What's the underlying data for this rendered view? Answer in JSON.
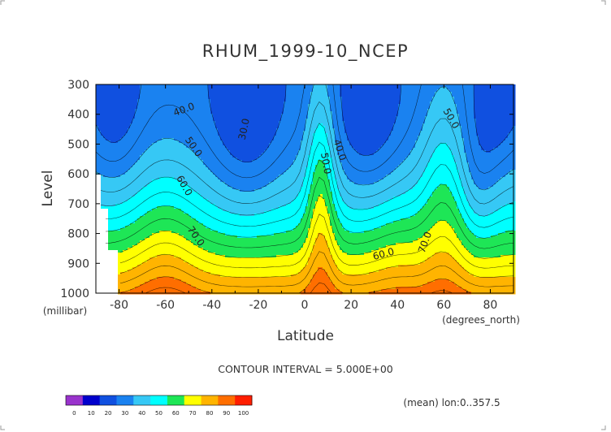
{
  "chart_data": {
    "type": "heatmap",
    "title": "RHUM_1999-10_NCEP",
    "xlabel": "Latitude",
    "xunits": "(degrees_north)",
    "ylabel": "Level",
    "yunits": "(millibar)",
    "x_ticks": [
      "-80",
      "-60",
      "-40",
      "-20",
      "0",
      "20",
      "40",
      "60",
      "80"
    ],
    "y_ticks": [
      "300",
      "400",
      "500",
      "600",
      "700",
      "800",
      "900",
      "1000"
    ],
    "xlim": [
      -90,
      90
    ],
    "ylim": [
      1000,
      300
    ],
    "contour_interval_text": "CONTOUR INTERVAL = 5.000E+00",
    "footnote": "(mean) lon:0..357.5",
    "contour_labels": [
      {
        "text": "30.0",
        "lat": -26,
        "level": 450,
        "angle": -78
      },
      {
        "text": "40.0",
        "lat": -52,
        "level": 385,
        "angle": -20
      },
      {
        "text": "40.0",
        "lat": 15,
        "level": 520,
        "angle": 72
      },
      {
        "text": "50.0",
        "lat": -48,
        "level": 510,
        "angle": 55
      },
      {
        "text": "50.0",
        "lat": 9,
        "level": 565,
        "angle": 80
      },
      {
        "text": "50.0",
        "lat": 63,
        "level": 415,
        "angle": 60
      },
      {
        "text": "60.0",
        "lat": -52,
        "level": 640,
        "angle": 60
      },
      {
        "text": "60.0",
        "lat": 34,
        "level": 870,
        "angle": -15
      },
      {
        "text": "70.0",
        "lat": -47,
        "level": 810,
        "angle": 55
      },
      {
        "text": "70.0",
        "lat": 52,
        "level": 830,
        "angle": -70
      }
    ],
    "colorbar": {
      "ticks": [
        "0",
        "10",
        "20",
        "30",
        "40",
        "50",
        "60",
        "70",
        "80",
        "90",
        "100"
      ],
      "colors": [
        "#9933cc",
        "#0000cc",
        "#1050e0",
        "#1a82f0",
        "#36c8f5",
        "#00ffff",
        "#1ee656",
        "#ffff00",
        "#ffb400",
        "#ff6e00",
        "#ff1e00"
      ]
    },
    "missing_color": "#ffffff"
  }
}
